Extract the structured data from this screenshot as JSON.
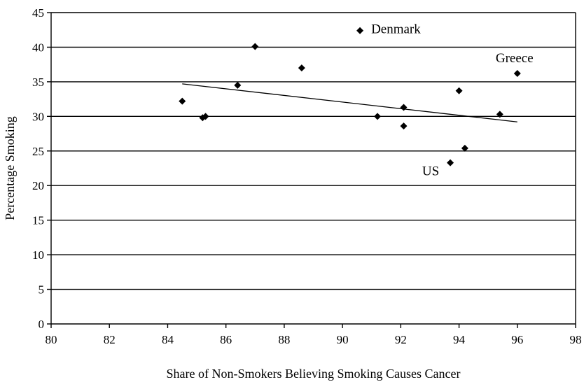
{
  "chart_data": {
    "type": "scatter",
    "title": "",
    "xlabel": "Share of Non-Smokers Believing Smoking Causes Cancer",
    "ylabel": "Percentage Smoking",
    "xlim": [
      80,
      98
    ],
    "ylim": [
      0,
      45
    ],
    "xticks": [
      80,
      82,
      84,
      86,
      88,
      90,
      92,
      94,
      96,
      98
    ],
    "yticks": [
      0,
      5,
      10,
      15,
      20,
      25,
      30,
      35,
      40,
      45
    ],
    "grid": "horizontal",
    "legend": "none",
    "marker": "diamond",
    "color": "#000000",
    "points": [
      {
        "x": 84.5,
        "y": 32.2
      },
      {
        "x": 85.2,
        "y": 29.8
      },
      {
        "x": 85.3,
        "y": 30.0
      },
      {
        "x": 86.4,
        "y": 34.5
      },
      {
        "x": 87.0,
        "y": 40.1
      },
      {
        "x": 88.6,
        "y": 37.0
      },
      {
        "x": 90.6,
        "y": 42.4
      },
      {
        "x": 91.2,
        "y": 30.0
      },
      {
        "x": 92.1,
        "y": 28.6
      },
      {
        "x": 92.1,
        "y": 31.3
      },
      {
        "x": 93.7,
        "y": 23.3
      },
      {
        "x": 94.0,
        "y": 33.7
      },
      {
        "x": 94.2,
        "y": 25.4
      },
      {
        "x": 95.4,
        "y": 30.3
      },
      {
        "x": 96.0,
        "y": 36.2
      }
    ],
    "trendline": {
      "x": [
        84.5,
        96.0
      ],
      "y": [
        34.7,
        29.2
      ]
    },
    "annotations": [
      {
        "text": "Denmark",
        "x": 90.6,
        "y": 42.4
      },
      {
        "text": "Greece",
        "x": 96.0,
        "y": 36.2
      },
      {
        "text": "US",
        "x": 93.7,
        "y": 23.3
      }
    ]
  }
}
